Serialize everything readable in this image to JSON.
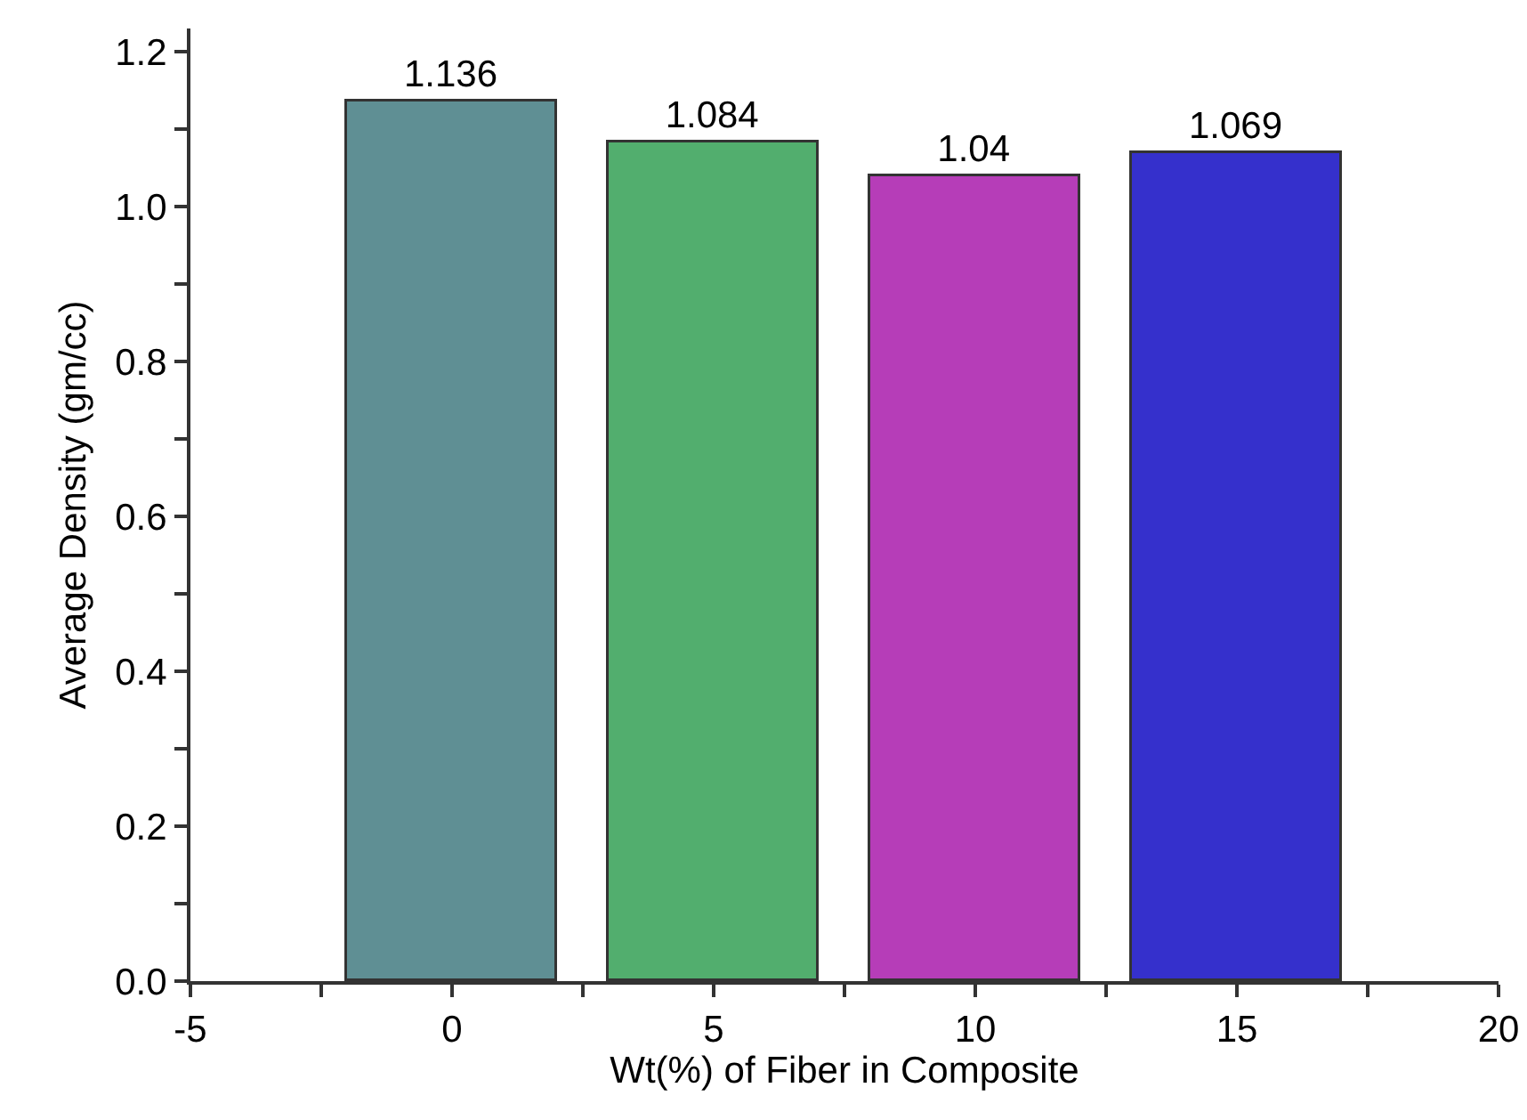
{
  "chart_data": {
    "type": "bar",
    "xlabel": "Wt(%) of Fiber in Composite",
    "ylabel": "Average Density (gm/cc)",
    "x": [
      0,
      5,
      10,
      15
    ],
    "values": [
      1.136,
      1.084,
      1.04,
      1.069
    ],
    "colors": [
      "#5f8f94",
      "#52ae6e",
      "#b63db8",
      "#3530cc"
    ],
    "data_labels": true,
    "xlim": [
      -5,
      20
    ],
    "xticks": [
      -5,
      {
        "value": -2.5,
        "label": null
      },
      0,
      {
        "value": 2.5,
        "label": null
      },
      5,
      {
        "value": 7.5,
        "label": null
      },
      10,
      {
        "value": 12.5,
        "label": null
      },
      15,
      {
        "value": 17.5,
        "label": null
      },
      20
    ],
    "ylim": [
      0,
      1.23
    ],
    "yticks": [
      {
        "value": 0,
        "label": "0.0"
      },
      {
        "value": 0.1,
        "label": null
      },
      0.2,
      {
        "value": 0.3,
        "label": null
      },
      0.4,
      {
        "value": 0.5,
        "label": null
      },
      0.6,
      {
        "value": 0.7,
        "label": null
      },
      0.8,
      {
        "value": 0.9,
        "label": null
      },
      {
        "value": 1,
        "label": "1.0"
      },
      {
        "value": 1.1,
        "label": null
      },
      1.2
    ]
  }
}
